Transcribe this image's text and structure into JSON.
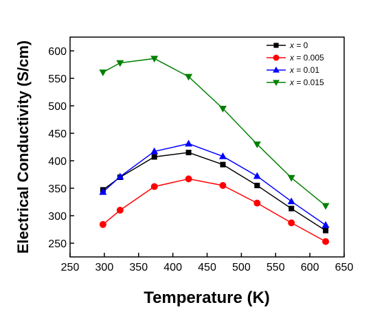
{
  "chart_data": {
    "type": "line",
    "xlabel": "Temperature (K)",
    "ylabel": "Electrical Conductivity (S/cm)",
    "xlim": [
      250,
      650
    ],
    "ylim": [
      225,
      625
    ],
    "xticks": [
      250,
      300,
      350,
      400,
      450,
      500,
      550,
      600,
      650
    ],
    "yticks": [
      250,
      300,
      350,
      400,
      450,
      500,
      550,
      600
    ],
    "grid": false,
    "legend_position": "top-right",
    "x": [
      298,
      323,
      373,
      423,
      473,
      523,
      573,
      623
    ],
    "series": [
      {
        "name": "x = 0",
        "name_prefix": "x",
        "name_suffix": " = 0",
        "color": "#000000",
        "marker": "square",
        "values": [
          347,
          370,
          407,
          415,
          393,
          355,
          313,
          273
        ]
      },
      {
        "name": "x = 0.005",
        "name_prefix": "x",
        "name_suffix": " = 0.005",
        "color": "#ff0000",
        "marker": "circle",
        "values": [
          284,
          310,
          353,
          367,
          355,
          323,
          287,
          253
        ]
      },
      {
        "name": "x = 0.01",
        "name_prefix": "x",
        "name_suffix": " = 0.01",
        "color": "#0000ff",
        "marker": "triangle-up",
        "values": [
          343,
          371,
          417,
          431,
          408,
          372,
          326,
          283
        ]
      },
      {
        "name": "x = 0.015",
        "name_prefix": "x",
        "name_suffix": " = 0.015",
        "color": "#008000",
        "marker": "triangle-down",
        "values": [
          561,
          578,
          586,
          553,
          495,
          430,
          369,
          318
        ]
      }
    ]
  }
}
